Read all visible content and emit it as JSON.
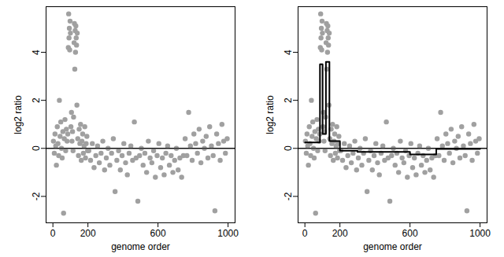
{
  "chart_data": [
    {
      "type": "scatter",
      "xlabel": "genome order",
      "ylabel": "log2 ratio",
      "xlim": [
        -39,
        1040
      ],
      "xticks": [
        0,
        200,
        600,
        1000
      ],
      "ylim": [
        -3.1,
        5.9
      ],
      "yticks": [
        -2,
        0,
        2,
        4
      ],
      "reference_line": 0,
      "series": [
        {
          "type": "scatter",
          "color": "#a0a0a0",
          "marker": "circle",
          "x": [
            3,
            8,
            12,
            16,
            20,
            25,
            29,
            33,
            37,
            41,
            45,
            49,
            53,
            57,
            61,
            65,
            69,
            73,
            77,
            81,
            85,
            88,
            90,
            92,
            94,
            96,
            98,
            100,
            103,
            106,
            109,
            112,
            115,
            118,
            121,
            123,
            125,
            127,
            129,
            131,
            133,
            135,
            137,
            139,
            142,
            146,
            150,
            154,
            158,
            162,
            166,
            170,
            174,
            178,
            182,
            186,
            190,
            194,
            198,
            205,
            215,
            225,
            235,
            245,
            255,
            265,
            275,
            285,
            295,
            305,
            315,
            325,
            335,
            345,
            355,
            365,
            375,
            385,
            395,
            405,
            415,
            425,
            435,
            445,
            455,
            465,
            475,
            485,
            495,
            505,
            515,
            525,
            535,
            545,
            555,
            565,
            575,
            585,
            595,
            605,
            615,
            625,
            635,
            645,
            655,
            665,
            675,
            685,
            695,
            705,
            715,
            725,
            735,
            745,
            755,
            765,
            775,
            785,
            795,
            805,
            815,
            825,
            835,
            845,
            855,
            865,
            875,
            885,
            895,
            905,
            915,
            925,
            935,
            945,
            955,
            965,
            975,
            985,
            995
          ],
          "values": [
            0.3,
            -0.2,
            0.6,
            0.1,
            -0.7,
            0.9,
            0.2,
            -0.3,
            2.0,
            0.5,
            1.1,
            0.0,
            -0.4,
            0.7,
            -2.7,
            0.4,
            1.2,
            -0.1,
            0.8,
            0.3,
            0.6,
            4.2,
            5.6,
            4.6,
            5.0,
            4.1,
            5.3,
            4.8,
            0.9,
            1.5,
            0.3,
            0.7,
            -0.1,
            1.3,
            4.4,
            5.2,
            3.3,
            4.9,
            4.0,
            5.1,
            4.6,
            4.3,
            1.8,
            4.8,
            0.4,
            -0.3,
            0.8,
            0.2,
            1.0,
            -0.5,
            0.3,
            0.6,
            -0.2,
            0.1,
            0.9,
            -0.4,
            0.2,
            0.5,
            -0.1,
            -0.1,
            -0.5,
            0.2,
            -0.8,
            -0.3,
            0.1,
            -0.6,
            -0.2,
            0.3,
            -0.9,
            -0.4,
            0.0,
            -0.7,
            -0.2,
            0.4,
            -1.8,
            -0.5,
            -0.1,
            -0.9,
            -0.3,
            0.2,
            -0.6,
            -1.1,
            -0.2,
            0.1,
            -0.5,
            1.1,
            -0.4,
            -2.2,
            -0.3,
            0.0,
            -0.7,
            -0.2,
            -1.0,
            0.3,
            -0.4,
            -0.6,
            -0.1,
            -1.2,
            -0.3,
            0.2,
            -0.8,
            -0.4,
            -1.1,
            -0.2,
            0.1,
            -0.7,
            -0.3,
            -1.0,
            -0.5,
            0.0,
            -0.9,
            -0.4,
            -1.2,
            -0.3,
            0.4,
            -0.3,
            1.5,
            0.1,
            -0.5,
            0.6,
            0.2,
            -0.2,
            0.8,
            -0.6,
            0.3,
            0.0,
            0.5,
            -0.4,
            0.9,
            0.1,
            -0.3,
            -2.6,
            0.6,
            0.2,
            -0.5,
            1.0,
            0.3,
            -0.2,
            0.4
          ]
        }
      ]
    },
    {
      "type": "scatter",
      "xlabel": "genome order",
      "ylabel": "log2 ratio",
      "xlim": [
        -39,
        1040
      ],
      "xticks": [
        0,
        200,
        600,
        1000
      ],
      "ylim": [
        -3.1,
        5.9
      ],
      "yticks": [
        -2,
        0,
        2,
        4
      ],
      "reference_line": 0,
      "series": [
        {
          "type": "scatter",
          "color": "#a0a0a0",
          "marker": "circle",
          "x": [
            3,
            8,
            12,
            16,
            20,
            25,
            29,
            33,
            37,
            41,
            45,
            49,
            53,
            57,
            61,
            65,
            69,
            73,
            77,
            81,
            85,
            88,
            90,
            92,
            94,
            96,
            98,
            100,
            103,
            106,
            109,
            112,
            115,
            118,
            121,
            123,
            125,
            127,
            129,
            131,
            133,
            135,
            137,
            139,
            142,
            146,
            150,
            154,
            158,
            162,
            166,
            170,
            174,
            178,
            182,
            186,
            190,
            194,
            198,
            205,
            215,
            225,
            235,
            245,
            255,
            265,
            275,
            285,
            295,
            305,
            315,
            325,
            335,
            345,
            355,
            365,
            375,
            385,
            395,
            405,
            415,
            425,
            435,
            445,
            455,
            465,
            475,
            485,
            495,
            505,
            515,
            525,
            535,
            545,
            555,
            565,
            575,
            585,
            595,
            605,
            615,
            625,
            635,
            645,
            655,
            665,
            675,
            685,
            695,
            705,
            715,
            725,
            735,
            745,
            755,
            765,
            775,
            785,
            795,
            805,
            815,
            825,
            835,
            845,
            855,
            865,
            875,
            885,
            895,
            905,
            915,
            925,
            935,
            945,
            955,
            965,
            975,
            985,
            995
          ],
          "values": [
            0.3,
            -0.2,
            0.6,
            0.1,
            -0.7,
            0.9,
            0.2,
            -0.3,
            2.0,
            0.5,
            1.1,
            0.0,
            -0.4,
            0.7,
            -2.7,
            0.4,
            1.2,
            -0.1,
            0.8,
            0.3,
            0.6,
            4.2,
            5.6,
            4.6,
            5.0,
            4.1,
            5.3,
            4.8,
            0.9,
            1.5,
            0.3,
            0.7,
            -0.1,
            1.3,
            4.4,
            5.2,
            3.3,
            4.9,
            4.0,
            5.1,
            4.6,
            4.3,
            1.8,
            4.8,
            0.4,
            -0.3,
            0.8,
            0.2,
            1.0,
            -0.5,
            0.3,
            0.6,
            -0.2,
            0.1,
            0.9,
            -0.4,
            0.2,
            0.5,
            -0.1,
            -0.1,
            -0.5,
            0.2,
            -0.8,
            -0.3,
            0.1,
            -0.6,
            -0.2,
            0.3,
            -0.9,
            -0.4,
            0.0,
            -0.7,
            -0.2,
            0.4,
            -1.8,
            -0.5,
            -0.1,
            -0.9,
            -0.3,
            0.2,
            -0.6,
            -1.1,
            -0.2,
            0.1,
            -0.5,
            1.1,
            -0.4,
            -2.2,
            -0.3,
            0.0,
            -0.7,
            -0.2,
            -1.0,
            0.3,
            -0.4,
            -0.6,
            -0.1,
            -1.2,
            -0.3,
            0.2,
            -0.8,
            -0.4,
            -1.1,
            -0.2,
            0.1,
            -0.7,
            -0.3,
            -1.0,
            -0.5,
            0.0,
            -0.9,
            -0.4,
            -1.2,
            -0.3,
            0.4,
            -0.3,
            1.5,
            0.1,
            -0.5,
            0.6,
            0.2,
            -0.2,
            0.8,
            -0.6,
            0.3,
            0.0,
            0.5,
            -0.4,
            0.9,
            0.1,
            -0.3,
            -2.6,
            0.6,
            0.2,
            -0.5,
            1.0,
            0.3,
            -0.2,
            0.4
          ]
        },
        {
          "type": "line",
          "color": "#000000",
          "line_style": "step",
          "x": [
            1,
            86,
            101,
            120,
            140,
            200,
            300,
            600,
            750,
            1000
          ],
          "values": [
            0.25,
            3.5,
            0.6,
            3.6,
            0.3,
            -0.1,
            -0.15,
            -0.25,
            -0.02,
            -0.02
          ]
        }
      ]
    }
  ]
}
